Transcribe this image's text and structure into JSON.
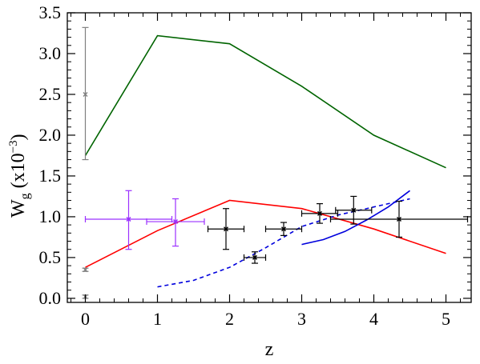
{
  "chart_data": {
    "type": "line",
    "title": "",
    "xlabel": "z",
    "ylabel_main": "W",
    "ylabel_sub": "g",
    "ylabel_pre": " (x10",
    "ylabel_sup": "−3",
    "ylabel_post": ")",
    "xlim": [
      -0.25,
      5.35
    ],
    "ylim": [
      -0.05,
      3.5
    ],
    "xticks": [
      0,
      1,
      2,
      3,
      4,
      5
    ],
    "xtick_labels": [
      "0",
      "1",
      "2",
      "3",
      "4",
      "5"
    ],
    "yticks": [
      0.0,
      0.5,
      1.0,
      1.5,
      2.0,
      2.5,
      3.0,
      3.5
    ],
    "ytick_labels": [
      "0.0",
      "0.5",
      "1.0",
      "1.5",
      "2.0",
      "2.5",
      "3.0",
      "3.5"
    ],
    "grid": false,
    "lines": [
      {
        "color": "#006400",
        "dash": false,
        "x": [
          0,
          1,
          2,
          3,
          4,
          5
        ],
        "y": [
          1.75,
          3.22,
          3.12,
          2.6,
          2.0,
          1.6
        ]
      },
      {
        "color": "#ff0000",
        "dash": false,
        "x": [
          0,
          1,
          2,
          3,
          4,
          5
        ],
        "y": [
          0.38,
          0.83,
          1.2,
          1.1,
          0.85,
          0.55
        ]
      },
      {
        "color": "#0000dd",
        "dash": false,
        "x": [
          3.0,
          3.3,
          3.6,
          3.9,
          4.2,
          4.5
        ],
        "y": [
          0.66,
          0.72,
          0.82,
          0.96,
          1.12,
          1.32
        ]
      },
      {
        "color": "#0000dd",
        "dash": true,
        "x": [
          1.0,
          1.5,
          2.0,
          2.5,
          3.0,
          3.5,
          4.0,
          4.5
        ],
        "y": [
          0.14,
          0.22,
          0.38,
          0.62,
          0.88,
          1.02,
          1.12,
          1.22
        ]
      }
    ],
    "points": [
      {
        "color": "#808080",
        "x": 0.0,
        "y": 2.5,
        "xerr": 0,
        "yerr_low": 0.8,
        "yerr_high": 0.82
      },
      {
        "color": "#808080",
        "x": 0.0,
        "y": 0.35,
        "xerr": 0,
        "yerr_low": 0.02,
        "yerr_high": 0.02
      },
      {
        "color": "#808080",
        "x": 0.0,
        "y": 0.02,
        "xerr": 0,
        "yerr_low": 0.02,
        "yerr_high": 0.02
      },
      {
        "color": "#9b30ff",
        "x": 0.6,
        "y": 0.97,
        "xerr": 0.6,
        "yerr_low": 0.37,
        "yerr_high": 0.35
      },
      {
        "color": "#9b30ff",
        "x": 1.25,
        "y": 0.94,
        "xerr": 0.4,
        "yerr_low": 0.3,
        "yerr_high": 0.28
      },
      {
        "color": "#000000",
        "x": 1.95,
        "y": 0.85,
        "xerr": 0.25,
        "yerr_low": 0.25,
        "yerr_high": 0.25
      },
      {
        "color": "#000000",
        "x": 2.35,
        "y": 0.5,
        "xerr": 0.15,
        "yerr_low": 0.07,
        "yerr_high": 0.07
      },
      {
        "color": "#000000",
        "x": 2.75,
        "y": 0.85,
        "xerr": 0.25,
        "yerr_low": 0.08,
        "yerr_high": 0.08
      },
      {
        "color": "#000000",
        "x": 3.25,
        "y": 1.04,
        "xerr": 0.25,
        "yerr_low": 0.12,
        "yerr_high": 0.12
      },
      {
        "color": "#000000",
        "x": 3.72,
        "y": 1.08,
        "xerr": 0.25,
        "yerr_low": 0.17,
        "yerr_high": 0.17
      },
      {
        "color": "#000000",
        "x": 4.35,
        "y": 0.97,
        "xerr": 0.95,
        "yerr_low": 0.22,
        "yerr_high": 0.22
      }
    ]
  }
}
